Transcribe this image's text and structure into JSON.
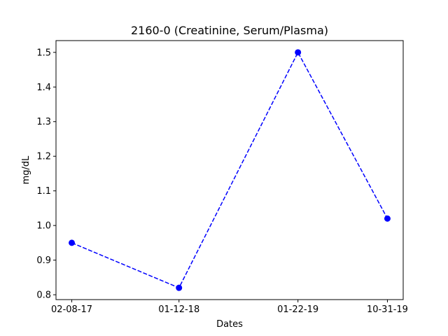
{
  "chart_data": {
    "type": "line",
    "title": "2160-0 (Creatinine, Serum/Plasma)",
    "xlabel": "Dates",
    "ylabel": "mg/dL",
    "x": [
      "02-08-17",
      "01-12-18",
      "01-22-19",
      "10-31-19"
    ],
    "x_days": [
      0,
      338,
      713,
      995
    ],
    "series": [
      {
        "name": "2160-0",
        "values": [
          0.95,
          0.82,
          1.5,
          1.02
        ],
        "color": "#0000ff",
        "line_style": "dashed",
        "marker": "circle"
      }
    ],
    "ylim": [
      0.786,
      1.534
    ],
    "yticks": [
      0.8,
      0.9,
      1.0,
      1.1,
      1.2,
      1.3,
      1.4,
      1.5
    ],
    "ytick_labels": [
      "0.8",
      "0.9",
      "1.0",
      "1.1",
      "1.2",
      "1.3",
      "1.4",
      "1.5"
    ],
    "grid": false,
    "legend": "none"
  }
}
